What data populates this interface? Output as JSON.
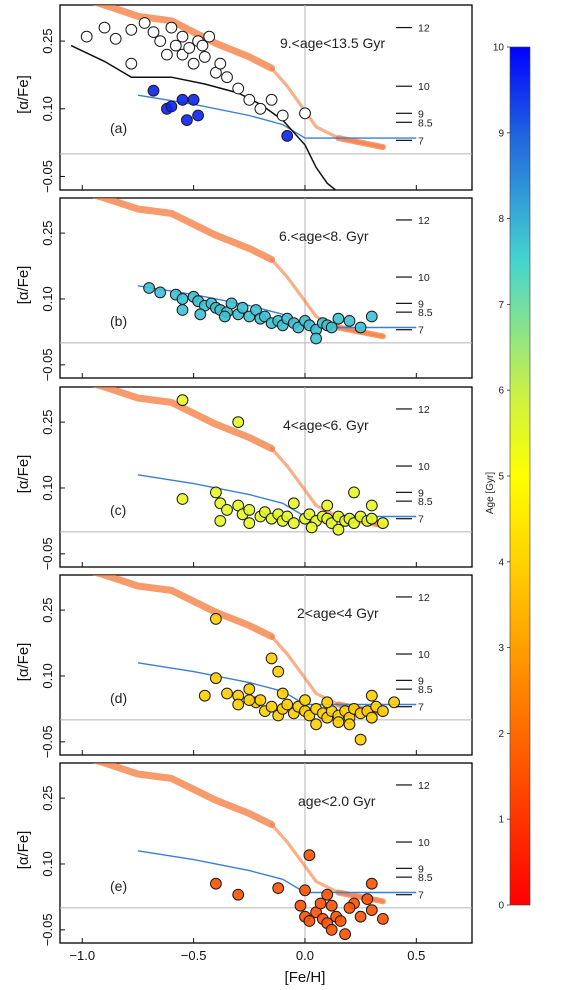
{
  "chart_data": {
    "type": "scatter",
    "xlabel": "[Fe/H]",
    "ylabel": "[α/Fe]",
    "xlim": [
      -1.1,
      0.75
    ],
    "ylim": [
      -0.08,
      0.33
    ],
    "xticks": [
      -1.0,
      -0.5,
      0.0,
      0.5
    ],
    "xtick_labels": [
      "−1.0",
      "−0.5",
      "0.0",
      "0.5"
    ],
    "yticks": [
      -0.05,
      0.1,
      0.25
    ],
    "ytick_labels": [
      "−0.05",
      "0.10",
      "0.25"
    ],
    "grid": false,
    "reference_lines": {
      "x": 0.0,
      "y": 0.0
    },
    "colorbar": {
      "label": "Age [Gyr]",
      "range": [
        0,
        10
      ],
      "ticks": [
        0,
        1,
        2,
        3,
        4,
        5,
        6,
        7,
        8,
        9,
        10
      ],
      "tick_labels": [
        "0",
        "1",
        "2",
        "3",
        "4",
        "5",
        "6",
        "7",
        "8",
        "9",
        "10"
      ],
      "colormap": [
        "#ff0000",
        "#ff6a00",
        "#ffd200",
        "#ffff00",
        "#c8f04a",
        "#45d5cf",
        "#1f62e0",
        "#0000ff"
      ]
    },
    "model_curves": {
      "orange_track": {
        "color": "#f47a3c",
        "points": [
          [
            -1.1,
            0.36
          ],
          [
            -0.9,
            0.33
          ],
          [
            -0.75,
            0.305
          ],
          [
            -0.6,
            0.295
          ],
          [
            -0.5,
            0.27
          ],
          [
            -0.4,
            0.245
          ],
          [
            -0.25,
            0.215
          ],
          [
            -0.15,
            0.19
          ],
          [
            -0.08,
            0.15
          ],
          [
            0.0,
            0.095
          ],
          [
            0.05,
            0.06
          ],
          [
            0.15,
            0.035
          ],
          [
            0.25,
            0.025
          ],
          [
            0.35,
            0.015
          ]
        ]
      },
      "blue_line": {
        "color": "#3a7fd5",
        "points": [
          [
            -0.75,
            0.13
          ],
          [
            -0.5,
            0.11
          ],
          [
            -0.25,
            0.085
          ],
          [
            -0.1,
            0.065
          ],
          [
            0.0,
            0.035
          ],
          [
            0.1,
            0.035
          ],
          [
            0.3,
            0.035
          ],
          [
            0.5,
            0.035
          ]
        ]
      },
      "black_line": {
        "color": "#111111",
        "points": [
          [
            -1.05,
            0.24
          ],
          [
            -0.9,
            0.205
          ],
          [
            -0.78,
            0.17
          ],
          [
            -0.6,
            0.17
          ],
          [
            -0.45,
            0.155
          ],
          [
            -0.3,
            0.135
          ],
          [
            -0.2,
            0.11
          ],
          [
            -0.1,
            0.075
          ],
          [
            0.0,
            0.02
          ],
          [
            0.05,
            -0.03
          ],
          [
            0.1,
            -0.065
          ],
          [
            0.15,
            -0.085
          ]
        ]
      }
    },
    "isochrone_ticks": [
      {
        "label": "12",
        "y": 0.28
      },
      {
        "label": "10",
        "y": 0.15
      },
      {
        "label": "9",
        "y": 0.09
      },
      {
        "label": "8.5",
        "y": 0.07
      },
      {
        "label": "7",
        "y": 0.03
      }
    ],
    "panels": [
      {
        "label": "(a)",
        "title": "9.<age<13.5 Gyr",
        "age": 10.5,
        "open": true,
        "show_black_line": true,
        "points": [
          [
            -0.98,
            0.26
          ],
          [
            -0.9,
            0.28
          ],
          [
            -0.85,
            0.255
          ],
          [
            -0.78,
            0.275
          ],
          [
            -0.72,
            0.29
          ],
          [
            -0.68,
            0.27
          ],
          [
            -0.65,
            0.25
          ],
          [
            -0.6,
            0.28
          ],
          [
            -0.58,
            0.24
          ],
          [
            -0.55,
            0.22
          ],
          [
            -0.52,
            0.235
          ],
          [
            -0.5,
            0.2
          ],
          [
            -0.48,
            0.25
          ],
          [
            -0.45,
            0.215
          ],
          [
            -0.43,
            0.26
          ],
          [
            -0.4,
            0.18
          ],
          [
            -0.38,
            0.2
          ],
          [
            -0.35,
            0.17
          ],
          [
            -0.3,
            0.145
          ],
          [
            -0.25,
            0.12
          ],
          [
            -0.2,
            0.1
          ],
          [
            -0.15,
            0.12
          ],
          [
            -0.1,
            0.085
          ],
          [
            0.0,
            0.09
          ],
          [
            -0.78,
            0.2
          ],
          [
            -0.62,
            0.22
          ],
          [
            -0.55,
            0.26
          ],
          [
            -0.46,
            0.24
          ]
        ]
      },
      {
        "label": "(a)",
        "title": "",
        "age": 9.5,
        "open": false,
        "show_black_line": false,
        "points": [
          [
            -0.68,
            0.14
          ],
          [
            -0.62,
            0.1
          ],
          [
            -0.55,
            0.12
          ],
          [
            -0.5,
            0.12
          ],
          [
            -0.53,
            0.075
          ],
          [
            -0.48,
            0.085
          ],
          [
            -0.6,
            0.105
          ],
          [
            -0.08,
            0.04
          ]
        ]
      },
      {
        "label": "(b)",
        "title": "6.<age<8. Gyr",
        "age": 7.4,
        "open": false,
        "show_black_line": false,
        "points": [
          [
            -0.7,
            0.125
          ],
          [
            -0.65,
            0.115
          ],
          [
            -0.58,
            0.11
          ],
          [
            -0.55,
            0.1
          ],
          [
            -0.5,
            0.105
          ],
          [
            -0.48,
            0.095
          ],
          [
            -0.45,
            0.085
          ],
          [
            -0.42,
            0.09
          ],
          [
            -0.4,
            0.08
          ],
          [
            -0.38,
            0.075
          ],
          [
            -0.35,
            0.07
          ],
          [
            -0.33,
            0.09
          ],
          [
            -0.3,
            0.065
          ],
          [
            -0.28,
            0.08
          ],
          [
            -0.25,
            0.06
          ],
          [
            -0.22,
            0.075
          ],
          [
            -0.2,
            0.055
          ],
          [
            -0.18,
            0.06
          ],
          [
            -0.15,
            0.045
          ],
          [
            -0.12,
            0.05
          ],
          [
            -0.1,
            0.04
          ],
          [
            -0.08,
            0.055
          ],
          [
            -0.05,
            0.045
          ],
          [
            -0.03,
            0.035
          ],
          [
            0.0,
            0.05
          ],
          [
            0.02,
            0.04
          ],
          [
            0.05,
            0.03
          ],
          [
            0.08,
            0.045
          ],
          [
            0.1,
            0.04
          ],
          [
            0.12,
            0.035
          ],
          [
            0.15,
            0.055
          ],
          [
            0.2,
            0.05
          ],
          [
            0.25,
            0.035
          ],
          [
            0.3,
            0.06
          ],
          [
            0.05,
            0.01
          ],
          [
            -0.55,
            0.075
          ],
          [
            -0.47,
            0.065
          ],
          [
            -0.36,
            0.06
          ]
        ]
      },
      {
        "label": "(c)",
        "title": "4<age<6. Gyr",
        "age": 5.0,
        "open": false,
        "show_black_line": false,
        "points": [
          [
            -0.55,
            0.3
          ],
          [
            -0.3,
            0.25
          ],
          [
            -0.55,
            0.075
          ],
          [
            -0.4,
            0.09
          ],
          [
            -0.38,
            0.065
          ],
          [
            -0.35,
            0.05
          ],
          [
            -0.3,
            0.06
          ],
          [
            -0.28,
            0.04
          ],
          [
            -0.25,
            0.05
          ],
          [
            -0.2,
            0.035
          ],
          [
            -0.18,
            0.045
          ],
          [
            -0.15,
            0.03
          ],
          [
            -0.12,
            0.04
          ],
          [
            -0.1,
            0.025
          ],
          [
            -0.08,
            0.035
          ],
          [
            -0.05,
            0.02
          ],
          [
            0.0,
            0.03
          ],
          [
            0.02,
            0.04
          ],
          [
            0.05,
            0.025
          ],
          [
            0.08,
            0.035
          ],
          [
            0.1,
            0.03
          ],
          [
            0.12,
            0.02
          ],
          [
            0.15,
            0.035
          ],
          [
            0.18,
            0.025
          ],
          [
            0.2,
            0.03
          ],
          [
            0.22,
            0.02
          ],
          [
            0.25,
            0.035
          ],
          [
            0.28,
            0.025
          ],
          [
            0.3,
            0.03
          ],
          [
            0.35,
            0.02
          ],
          [
            0.1,
            0.06
          ],
          [
            0.22,
            0.09
          ],
          [
            0.3,
            0.06
          ],
          [
            -0.05,
            0.065
          ],
          [
            0.03,
            0.01
          ],
          [
            0.15,
            0.005
          ],
          [
            -0.38,
            0.025
          ],
          [
            -0.25,
            0.02
          ]
        ]
      },
      {
        "label": "(d)",
        "title": "2<age<4 Gyr",
        "age": 2.8,
        "open": false,
        "show_black_line": false,
        "points": [
          [
            -0.4,
            0.23
          ],
          [
            -0.4,
            0.095
          ],
          [
            -0.35,
            0.06
          ],
          [
            -0.45,
            0.055
          ],
          [
            -0.3,
            0.055
          ],
          [
            -0.25,
            0.07
          ],
          [
            -0.22,
            0.04
          ],
          [
            -0.2,
            0.045
          ],
          [
            -0.18,
            0.02
          ],
          [
            -0.15,
            0.03
          ],
          [
            -0.12,
            0.01
          ],
          [
            -0.1,
            0.025
          ],
          [
            -0.08,
            0.035
          ],
          [
            -0.05,
            0.015
          ],
          [
            -0.03,
            0.03
          ],
          [
            0.0,
            0.02
          ],
          [
            0.02,
            0.01
          ],
          [
            0.05,
            0.025
          ],
          [
            0.08,
            0.015
          ],
          [
            0.1,
            0.005
          ],
          [
            0.12,
            0.02
          ],
          [
            0.15,
            0.01
          ],
          [
            0.18,
            0.02
          ],
          [
            0.2,
            0.005
          ],
          [
            0.22,
            0.025
          ],
          [
            0.25,
            0.015
          ],
          [
            0.28,
            0.02
          ],
          [
            0.3,
            0.005
          ],
          [
            0.32,
            0.03
          ],
          [
            0.35,
            0.02
          ],
          [
            0.3,
            0.055
          ],
          [
            0.4,
            0.04
          ],
          [
            -0.15,
            0.14
          ],
          [
            -0.12,
            0.11
          ],
          [
            0.15,
            -0.005
          ],
          [
            0.05,
            -0.01
          ],
          [
            0.2,
            -0.01
          ],
          [
            0.25,
            -0.045
          ],
          [
            -0.25,
            0.045
          ],
          [
            -0.3,
            0.035
          ],
          [
            0.1,
            0.04
          ],
          [
            0.0,
            0.045
          ],
          [
            -0.1,
            0.06
          ]
        ]
      },
      {
        "label": "(e)",
        "title": "age<2.0 Gyr",
        "age": 1.1,
        "open": false,
        "show_black_line": false,
        "points": [
          [
            -0.4,
            0.055
          ],
          [
            -0.3,
            0.03
          ],
          [
            -0.12,
            0.045
          ],
          [
            0.02,
            0.12
          ],
          [
            0.1,
            0.03
          ],
          [
            0.0,
            0.04
          ],
          [
            -0.02,
            0.005
          ],
          [
            0.0,
            -0.02
          ],
          [
            0.02,
            -0.03
          ],
          [
            0.05,
            -0.01
          ],
          [
            0.07,
            0.01
          ],
          [
            0.08,
            -0.025
          ],
          [
            0.1,
            -0.035
          ],
          [
            0.12,
            0.005
          ],
          [
            0.14,
            -0.02
          ],
          [
            0.16,
            -0.03
          ],
          [
            0.18,
            -0.06
          ],
          [
            0.22,
            0.01
          ],
          [
            0.25,
            -0.02
          ],
          [
            0.28,
            0.02
          ],
          [
            0.3,
            0.055
          ],
          [
            0.3,
            -0.005
          ],
          [
            0.35,
            -0.025
          ],
          [
            0.2,
            0.0
          ],
          [
            0.12,
            -0.05
          ]
        ]
      }
    ]
  }
}
